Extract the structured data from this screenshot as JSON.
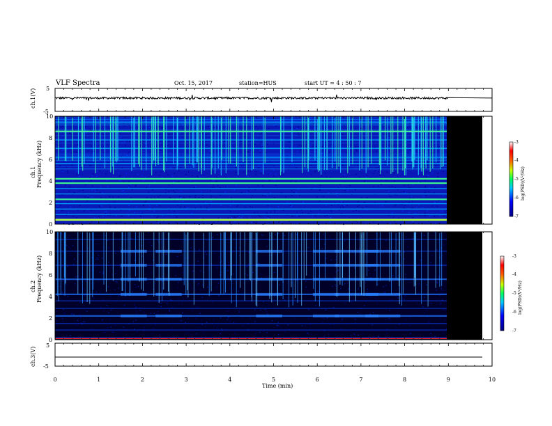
{
  "header": {
    "title": "VLF Spectra",
    "date": "Oct. 15, 2017",
    "station": "station=HUS",
    "start": "start  UT =   4 : 50 : 7"
  },
  "chart_data": {
    "type": "heatmap",
    "x_axis": {
      "label": "Time  (min)",
      "range": [
        0,
        10
      ],
      "ticks": [
        "0",
        "1",
        "2",
        "3",
        "4",
        "5",
        "6",
        "7",
        "8",
        "9",
        "10"
      ]
    },
    "panels": [
      {
        "id": "ch1-waveform",
        "type": "line",
        "ylabel": "ch.1(V)",
        "yrange": [
          -5,
          5
        ],
        "yticks": [
          "5",
          "-5"
        ],
        "data_end_min": 9.0,
        "baseline_v": 0.8
      },
      {
        "id": "ch1-spectrogram",
        "type": "heatmap",
        "ylabel_lines": [
          "ch.1",
          "Frequency  (kHz)"
        ],
        "yrange": [
          0,
          10
        ],
        "yticks": [
          "0",
          "2",
          "4",
          "6",
          "8",
          "10"
        ],
        "data_end_min": 9.0,
        "colorbar": {
          "label": "log(PSD)(V²/Hz)",
          "range": [
            -7,
            -3
          ],
          "ticks": [
            "-3",
            "-4",
            "-5",
            "-6",
            "-7"
          ]
        },
        "bands_khz": [
          0.4,
          0.9,
          1.4,
          1.9,
          2.3,
          2.8,
          3.3,
          3.8,
          4.2,
          5.6,
          6.2,
          7.0,
          7.8,
          8.6,
          9.4
        ],
        "strong_bands_khz": [
          0.4,
          2.3,
          3.8,
          4.2,
          8.6
        ]
      },
      {
        "id": "ch2-spectrogram",
        "type": "heatmap",
        "ylabel_lines": [
          "ch.2",
          "Frequency  (kHz)"
        ],
        "yrange": [
          0,
          10
        ],
        "yticks": [
          "0",
          "2",
          "4",
          "6",
          "8",
          "10"
        ],
        "data_end_min": 9.0,
        "colorbar": {
          "label": "log(PSD)(V²/Hz)",
          "range": [
            -7,
            -3
          ],
          "ticks": [
            "-3",
            "-4",
            "-5",
            "-6",
            "-7"
          ]
        },
        "bands_khz": [
          0.2,
          0.9,
          1.5,
          2.2,
          2.9,
          3.6,
          4.2,
          5.6,
          6.9,
          8.2,
          9.3
        ],
        "strong_bands_khz": [
          2.2,
          4.2,
          5.6
        ]
      },
      {
        "id": "ch3-waveform",
        "type": "line",
        "ylabel": "ch.3(V)",
        "yrange": [
          -5,
          5
        ],
        "yticks": [
          "5",
          "-5"
        ],
        "data_end_min": 10.0,
        "baseline_v": -1.5
      }
    ]
  }
}
